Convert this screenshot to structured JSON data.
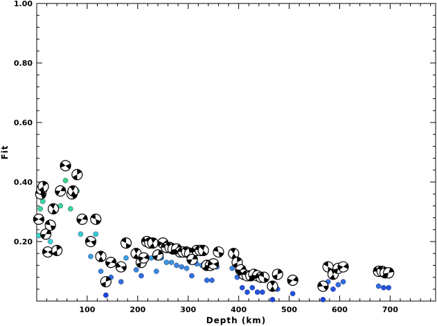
{
  "chart_data": {
    "type": "scatter",
    "title": "",
    "xlabel": "Depth (km)",
    "ylabel": "Fit",
    "xlim": [
      0,
      790
    ],
    "ylim": [
      0,
      1.0
    ],
    "x_ticks": [
      100,
      200,
      300,
      400,
      500,
      600,
      700
    ],
    "x_tick_labels": [
      "100",
      "200",
      "300",
      "400",
      "500",
      "600",
      "700"
    ],
    "y_ticks": [
      0.2,
      0.4,
      0.6,
      0.8,
      1.0
    ],
    "y_tick_labels": [
      "0.20",
      "0.40",
      "0.60",
      "0.80",
      "1.00"
    ],
    "grid": false,
    "legend": "none",
    "series": [
      {
        "marker": "mechanism",
        "points": [
          {
            "x": 4,
            "y": 0.275
          },
          {
            "x": 8,
            "y": 0.36
          },
          {
            "x": 10,
            "y": 0.375
          },
          {
            "x": 13,
            "y": 0.385
          },
          {
            "x": 18,
            "y": 0.225
          },
          {
            "x": 22,
            "y": 0.165
          },
          {
            "x": 27,
            "y": 0.255
          },
          {
            "x": 33,
            "y": 0.31
          },
          {
            "x": 40,
            "y": 0.17
          },
          {
            "x": 47,
            "y": 0.37
          },
          {
            "x": 57,
            "y": 0.455
          },
          {
            "x": 70,
            "y": 0.36
          },
          {
            "x": 72,
            "y": 0.37
          },
          {
            "x": 80,
            "y": 0.425
          },
          {
            "x": 90,
            "y": 0.275
          },
          {
            "x": 107,
            "y": 0.2
          },
          {
            "x": 117,
            "y": 0.275
          },
          {
            "x": 127,
            "y": 0.15
          },
          {
            "x": 137,
            "y": 0.065
          },
          {
            "x": 147,
            "y": 0.13
          },
          {
            "x": 167,
            "y": 0.115
          },
          {
            "x": 177,
            "y": 0.195
          },
          {
            "x": 197,
            "y": 0.16
          },
          {
            "x": 207,
            "y": 0.13
          },
          {
            "x": 212,
            "y": 0.145
          },
          {
            "x": 218,
            "y": 0.2
          },
          {
            "x": 224,
            "y": 0.195
          },
          {
            "x": 230,
            "y": 0.195
          },
          {
            "x": 240,
            "y": 0.155
          },
          {
            "x": 250,
            "y": 0.195
          },
          {
            "x": 257,
            "y": 0.18
          },
          {
            "x": 264,
            "y": 0.18
          },
          {
            "x": 270,
            "y": 0.175
          },
          {
            "x": 277,
            "y": 0.175
          },
          {
            "x": 284,
            "y": 0.165
          },
          {
            "x": 290,
            "y": 0.165
          },
          {
            "x": 297,
            "y": 0.165
          },
          {
            "x": 303,
            "y": 0.16
          },
          {
            "x": 308,
            "y": 0.14
          },
          {
            "x": 317,
            "y": 0.17
          },
          {
            "x": 324,
            "y": 0.17
          },
          {
            "x": 330,
            "y": 0.17
          },
          {
            "x": 337,
            "y": 0.12
          },
          {
            "x": 344,
            "y": 0.12
          },
          {
            "x": 350,
            "y": 0.125
          },
          {
            "x": 360,
            "y": 0.165
          },
          {
            "x": 390,
            "y": 0.16
          },
          {
            "x": 397,
            "y": 0.13
          },
          {
            "x": 404,
            "y": 0.105
          },
          {
            "x": 410,
            "y": 0.09
          },
          {
            "x": 417,
            "y": 0.085
          },
          {
            "x": 424,
            "y": 0.085
          },
          {
            "x": 430,
            "y": 0.09
          },
          {
            "x": 437,
            "y": 0.085
          },
          {
            "x": 444,
            "y": 0.08
          },
          {
            "x": 450,
            "y": 0.08
          },
          {
            "x": 467,
            "y": 0.05
          },
          {
            "x": 477,
            "y": 0.09
          },
          {
            "x": 507,
            "y": 0.07
          },
          {
            "x": 567,
            "y": 0.05
          },
          {
            "x": 577,
            "y": 0.115
          },
          {
            "x": 587,
            "y": 0.09
          },
          {
            "x": 597,
            "y": 0.11
          },
          {
            "x": 607,
            "y": 0.115
          },
          {
            "x": 677,
            "y": 0.1
          },
          {
            "x": 684,
            "y": 0.1
          },
          {
            "x": 690,
            "y": 0.095
          },
          {
            "x": 697,
            "y": 0.095
          }
        ]
      },
      {
        "marker": "dot",
        "points": [
          {
            "x": 4,
            "y": 0.22,
            "c": "#39d6c8"
          },
          {
            "x": 7,
            "y": 0.31,
            "c": "#39d6a0"
          },
          {
            "x": 12,
            "y": 0.335,
            "c": "#39d6a0"
          },
          {
            "x": 17,
            "y": 0.17,
            "c": "#39c8d6"
          },
          {
            "x": 27,
            "y": 0.2,
            "c": "#39d6d6"
          },
          {
            "x": 33,
            "y": 0.255,
            "c": "#39d6c8"
          },
          {
            "x": 47,
            "y": 0.32,
            "c": "#39d6a0"
          },
          {
            "x": 57,
            "y": 0.405,
            "c": "#39d68a"
          },
          {
            "x": 67,
            "y": 0.31,
            "c": "#39d6a0"
          },
          {
            "x": 80,
            "y": 0.37,
            "c": "#39d68a"
          },
          {
            "x": 87,
            "y": 0.225,
            "c": "#39c8d6"
          },
          {
            "x": 107,
            "y": 0.15,
            "c": "#3aa0e0"
          },
          {
            "x": 117,
            "y": 0.225,
            "c": "#39c8d6"
          },
          {
            "x": 127,
            "y": 0.1,
            "c": "#3a88e0"
          },
          {
            "x": 147,
            "y": 0.08,
            "c": "#2f6ee0"
          },
          {
            "x": 167,
            "y": 0.065,
            "c": "#2f6ee0"
          },
          {
            "x": 177,
            "y": 0.145,
            "c": "#3aa0e0"
          },
          {
            "x": 197,
            "y": 0.105,
            "c": "#3a88e0"
          },
          {
            "x": 207,
            "y": 0.085,
            "c": "#2f6ee0"
          },
          {
            "x": 217,
            "y": 0.15,
            "c": "#3aa0e0"
          },
          {
            "x": 227,
            "y": 0.145,
            "c": "#3aa0e0"
          },
          {
            "x": 237,
            "y": 0.1,
            "c": "#3a88e0"
          },
          {
            "x": 247,
            "y": 0.145,
            "c": "#3aa0e0"
          },
          {
            "x": 257,
            "y": 0.13,
            "c": "#3a95e0"
          },
          {
            "x": 267,
            "y": 0.13,
            "c": "#3a95e0"
          },
          {
            "x": 277,
            "y": 0.12,
            "c": "#3a88e0"
          },
          {
            "x": 287,
            "y": 0.115,
            "c": "#3a88e0"
          },
          {
            "x": 297,
            "y": 0.11,
            "c": "#3a88e0"
          },
          {
            "x": 307,
            "y": 0.085,
            "c": "#2f6ee0"
          },
          {
            "x": 317,
            "y": 0.125,
            "c": "#3a88e0"
          },
          {
            "x": 327,
            "y": 0.12,
            "c": "#3a88e0"
          },
          {
            "x": 337,
            "y": 0.07,
            "c": "#2f6ee0"
          },
          {
            "x": 347,
            "y": 0.07,
            "c": "#2f6ee0"
          },
          {
            "x": 357,
            "y": 0.115,
            "c": "#3a88e0"
          },
          {
            "x": 387,
            "y": 0.11,
            "c": "#3a88e0"
          },
          {
            "x": 397,
            "y": 0.08,
            "c": "#2f6ee0"
          },
          {
            "x": 407,
            "y": 0.045,
            "c": "#2255e0"
          },
          {
            "x": 417,
            "y": 0.03,
            "c": "#2255e0"
          },
          {
            "x": 427,
            "y": 0.045,
            "c": "#2255e0"
          },
          {
            "x": 437,
            "y": 0.03,
            "c": "#2255e0"
          },
          {
            "x": 447,
            "y": 0.03,
            "c": "#2255e0"
          },
          {
            "x": 467,
            "y": 0.005,
            "c": "#1a44e0"
          },
          {
            "x": 477,
            "y": 0.04,
            "c": "#2255e0"
          },
          {
            "x": 507,
            "y": 0.025,
            "c": "#2255e0"
          },
          {
            "x": 567,
            "y": 0.005,
            "c": "#1a44e0"
          },
          {
            "x": 577,
            "y": 0.065,
            "c": "#2f6ee0"
          },
          {
            "x": 587,
            "y": 0.04,
            "c": "#2255e0"
          },
          {
            "x": 597,
            "y": 0.055,
            "c": "#2f6ee0"
          },
          {
            "x": 607,
            "y": 0.065,
            "c": "#2f6ee0"
          },
          {
            "x": 677,
            "y": 0.05,
            "c": "#2f6ee0"
          },
          {
            "x": 687,
            "y": 0.045,
            "c": "#2255e0"
          },
          {
            "x": 697,
            "y": 0.045,
            "c": "#2255e0"
          },
          {
            "x": 137,
            "y": 0.02,
            "c": "#1a44e0"
          }
        ]
      }
    ]
  }
}
